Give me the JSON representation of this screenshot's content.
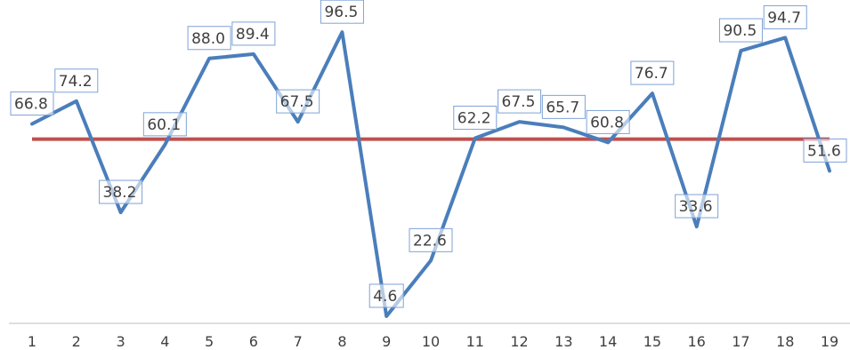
{
  "chart_data": {
    "type": "line",
    "x": [
      1,
      2,
      3,
      4,
      5,
      6,
      7,
      8,
      9,
      10,
      11,
      12,
      13,
      14,
      15,
      16,
      17,
      18,
      19
    ],
    "series": [
      {
        "values": [
          66.8,
          74.2,
          38.2,
          60.1,
          88.0,
          89.4,
          67.5,
          96.5,
          4.6,
          22.6,
          62.2,
          67.5,
          65.7,
          60.8,
          76.7,
          33.6,
          90.5,
          94.7,
          51.6
        ],
        "labels": [
          "66.8",
          "74.2",
          "38.2",
          "60.1",
          "88.0",
          "89.4",
          "67.5",
          "96.5",
          "4.6",
          "22.6",
          "62.2",
          "67.5",
          "65.7",
          "60.8",
          "76.7",
          "33.6",
          "90.5",
          "94.7",
          "51.6"
        ],
        "color": "#4a7ebb"
      },
      {
        "values": [
          61.9,
          61.9,
          61.9,
          61.9,
          61.9,
          61.9,
          61.9,
          61.9,
          61.9,
          61.9,
          61.9,
          61.9,
          61.9,
          61.9,
          61.9,
          61.9,
          61.9,
          61.9,
          61.9
        ],
        "color": "#c0504d"
      }
    ],
    "title": "",
    "xlabel": "",
    "ylabel": "",
    "ylim": [
      0,
      100
    ],
    "grid": false,
    "legend": "none"
  }
}
